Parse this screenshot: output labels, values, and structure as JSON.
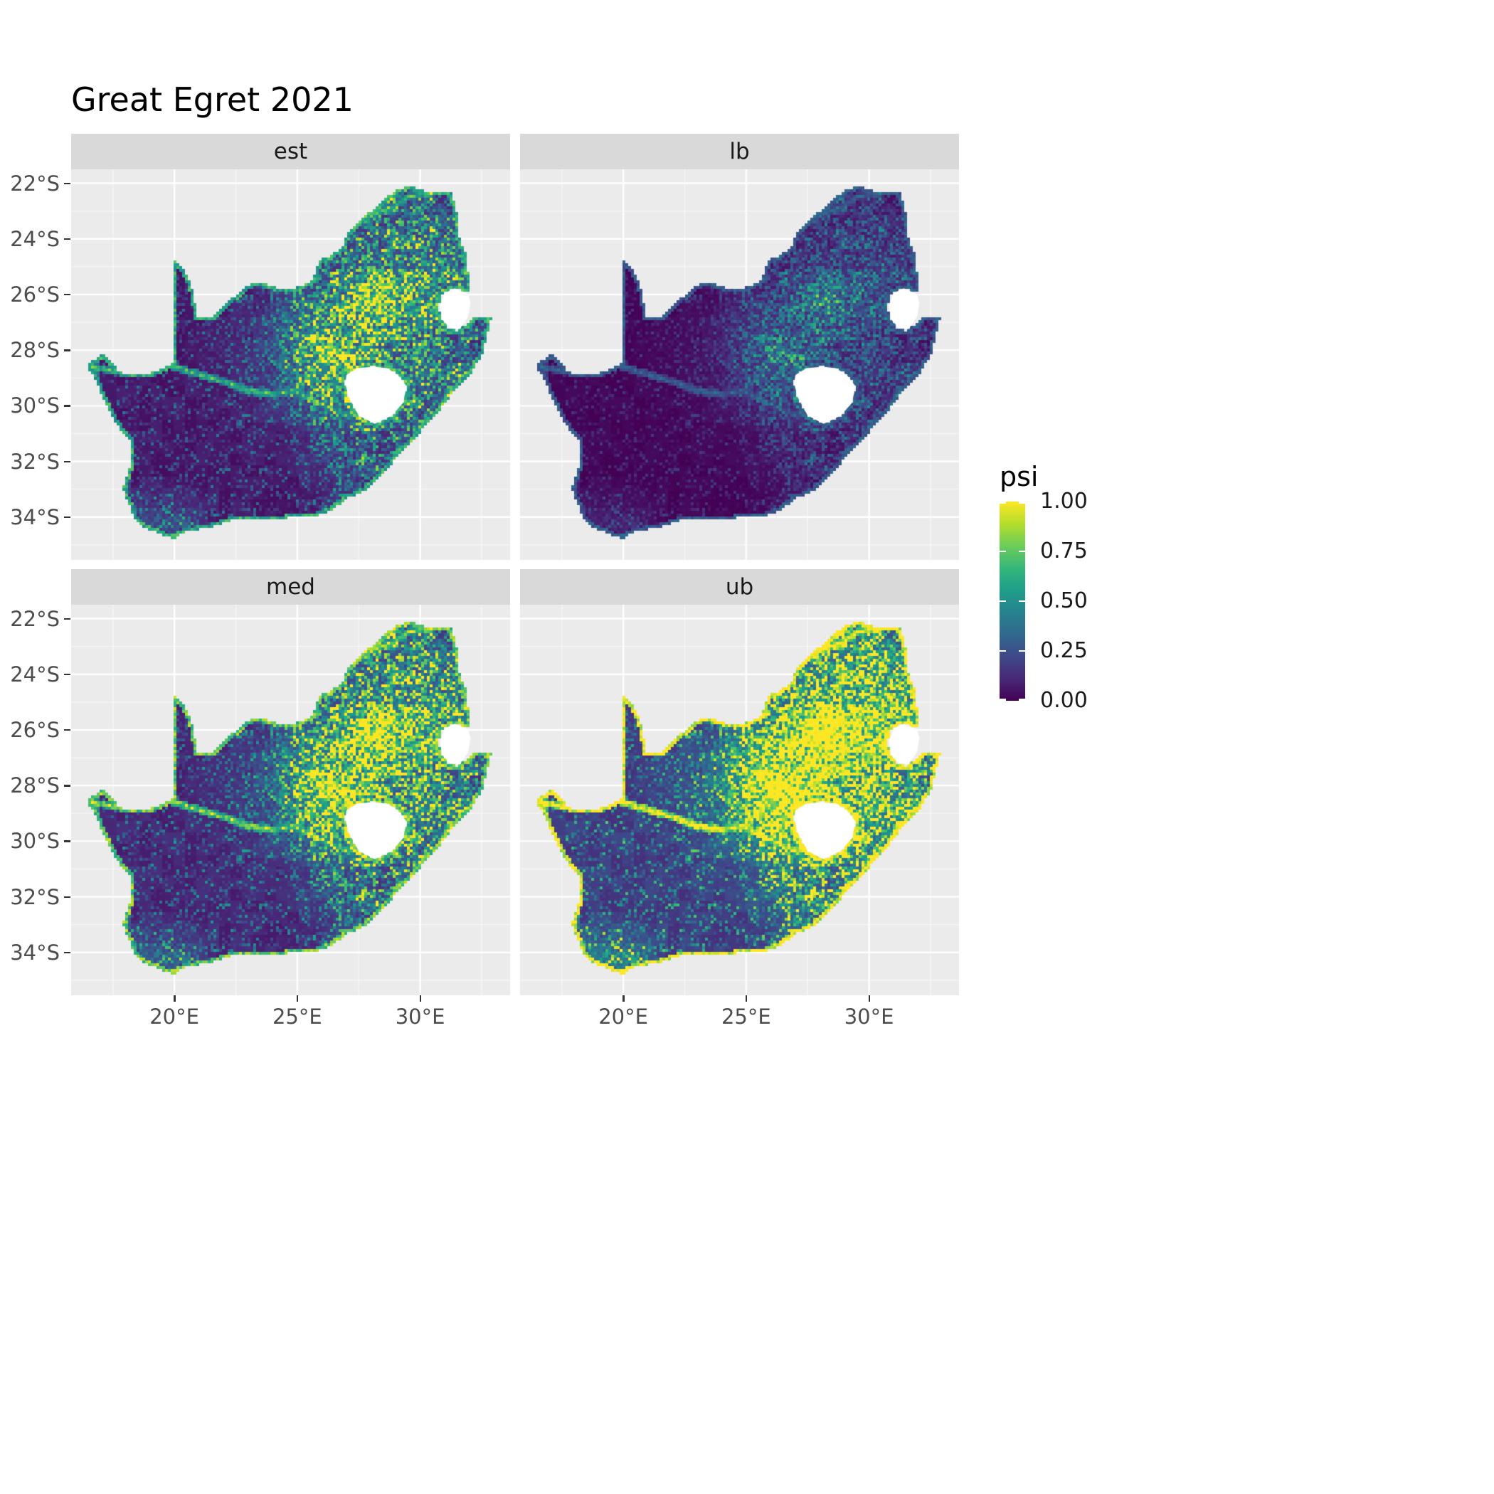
{
  "title": "Great Egret 2021",
  "facets": [
    {
      "id": "est",
      "label": "est"
    },
    {
      "id": "lb",
      "label": "lb"
    },
    {
      "id": "med",
      "label": "med"
    },
    {
      "id": "ub",
      "label": "ub"
    }
  ],
  "axes": {
    "y_tick_labels": [
      "22°S",
      "24°S",
      "26°S",
      "28°S",
      "30°S",
      "32°S",
      "34°S"
    ],
    "y_tick_lats": [
      -22,
      -24,
      -26,
      -28,
      -30,
      -32,
      -34
    ],
    "x_tick_labels": [
      "20°E",
      "25°E",
      "30°E"
    ],
    "x_tick_lons": [
      20,
      25,
      30
    ]
  },
  "legend": {
    "title": "psi",
    "tick_labels": [
      "1.00",
      "0.75",
      "0.50",
      "0.25",
      "0.00"
    ],
    "tick_values": [
      1,
      0.75,
      0.5,
      0.25,
      0
    ]
  },
  "colors": {
    "panel_bg": "#EBEBEB",
    "strip_bg": "#D9D9D9",
    "grid_major": "#FFFFFF",
    "axis_text": "#4D4D4D",
    "tick_mark": "#333333",
    "title_text": "#000000",
    "legend_text": "#1a1a1a",
    "na_fill": "#FFFFFF",
    "viridis": [
      "#440154",
      "#482878",
      "#3e4989",
      "#31688e",
      "#26828e",
      "#1f9e89",
      "#35b779",
      "#6dcd59",
      "#b4de2c",
      "#fde725"
    ]
  },
  "chart_data": {
    "type": "heatmap",
    "title": "Great Egret 2021",
    "facets": [
      "est",
      "lb",
      "med",
      "ub"
    ],
    "facet_grid": [
      [
        "est",
        "lb"
      ],
      [
        "med",
        "ub"
      ]
    ],
    "region": "South Africa occupancy raster (Lesotho and Eswatini shown blank/white)",
    "value_name": "psi",
    "value_range": [
      0,
      1
    ],
    "palette": "viridis",
    "x_axis": {
      "ticks": [
        "20°E",
        "25°E",
        "30°E"
      ],
      "range_lon": [
        15.8,
        33.7
      ]
    },
    "y_axis": {
      "ticks": [
        "22°S",
        "24°S",
        "26°S",
        "28°S",
        "30°S",
        "32°S",
        "34°S"
      ],
      "range_lat": [
        -35.6,
        -21.5
      ]
    },
    "legend_position": "right",
    "grid": "white major gridlines on grey panels",
    "relative_intensity": {
      "lb": "lowest - map almost entirely dark purple with teal patches in the central-east",
      "est": "low-moderate - dark west/Karoo, green-yellow hotspot around the Vaal/Free State interior, green coastal rim",
      "med": "moderate - like est but brighter and more widespread green in the east",
      "ub": "highest - widespread green over the eastern half, bright yellow hotspot and yellow coastal/border rim"
    },
    "hotspots": "High psi along the Vaal-Orange river corridor, Free State/Gauteng interior, Mpumalanga, KwaZulu-Natal, ring around Lesotho, the southern Cape tip, and the coastline edge; lowest across the Karoo, Kalahari and Namaqualand west"
  }
}
